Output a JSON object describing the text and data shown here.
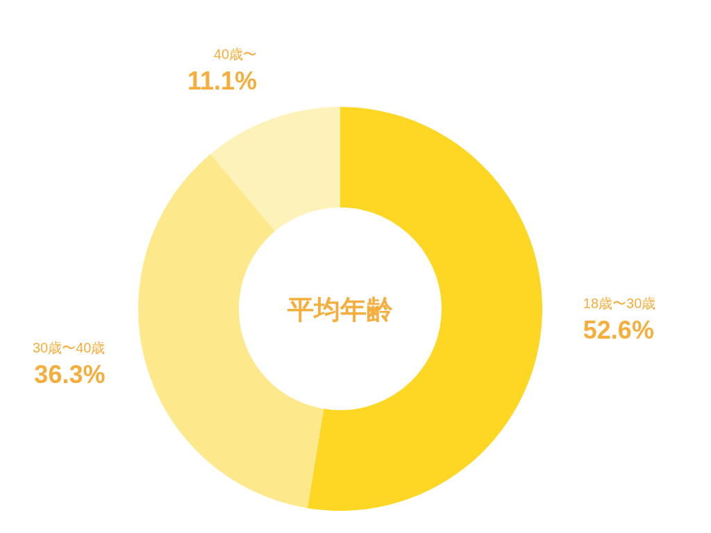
{
  "chart_data": {
    "type": "donut",
    "title": "平均年齢",
    "categories": [
      "18歳〜30歳",
      "30歳〜40歳",
      "40歳〜"
    ],
    "values": [
      52.6,
      36.3,
      11.1
    ],
    "colors": [
      "#fdd723",
      "#fde98c",
      "#fef2bb"
    ],
    "value_labels": [
      "52.6%",
      "36.3%",
      "11.1%"
    ]
  }
}
